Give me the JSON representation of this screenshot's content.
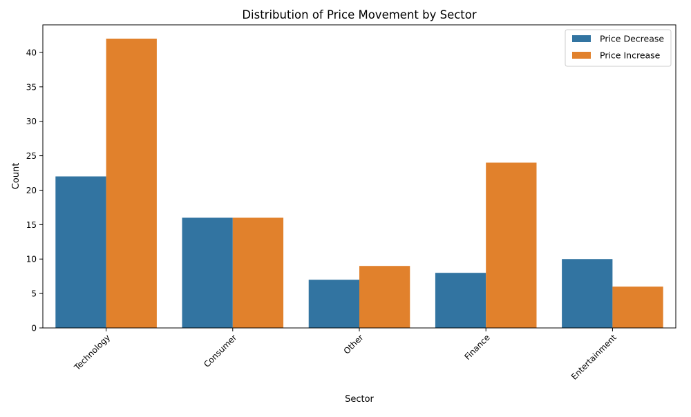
{
  "chart_data": {
    "type": "bar",
    "title": "Distribution of Price Movement by Sector",
    "xlabel": "Sector",
    "ylabel": "Count",
    "categories": [
      "Technology",
      "Consumer",
      "Other",
      "Finance",
      "Entertainment"
    ],
    "series": [
      {
        "name": "Price Decrease",
        "values": [
          22,
          16,
          7,
          8,
          10
        ],
        "color": "#3274a1"
      },
      {
        "name": "Price Increase",
        "values": [
          42,
          16,
          9,
          24,
          6
        ],
        "color": "#e1812c"
      }
    ],
    "ylim": [
      0,
      44
    ],
    "yticks": [
      0,
      5,
      10,
      15,
      20,
      25,
      30,
      35,
      40
    ],
    "xtick_rotation_degrees": 45,
    "grid": false,
    "legend_position": "top-right"
  }
}
